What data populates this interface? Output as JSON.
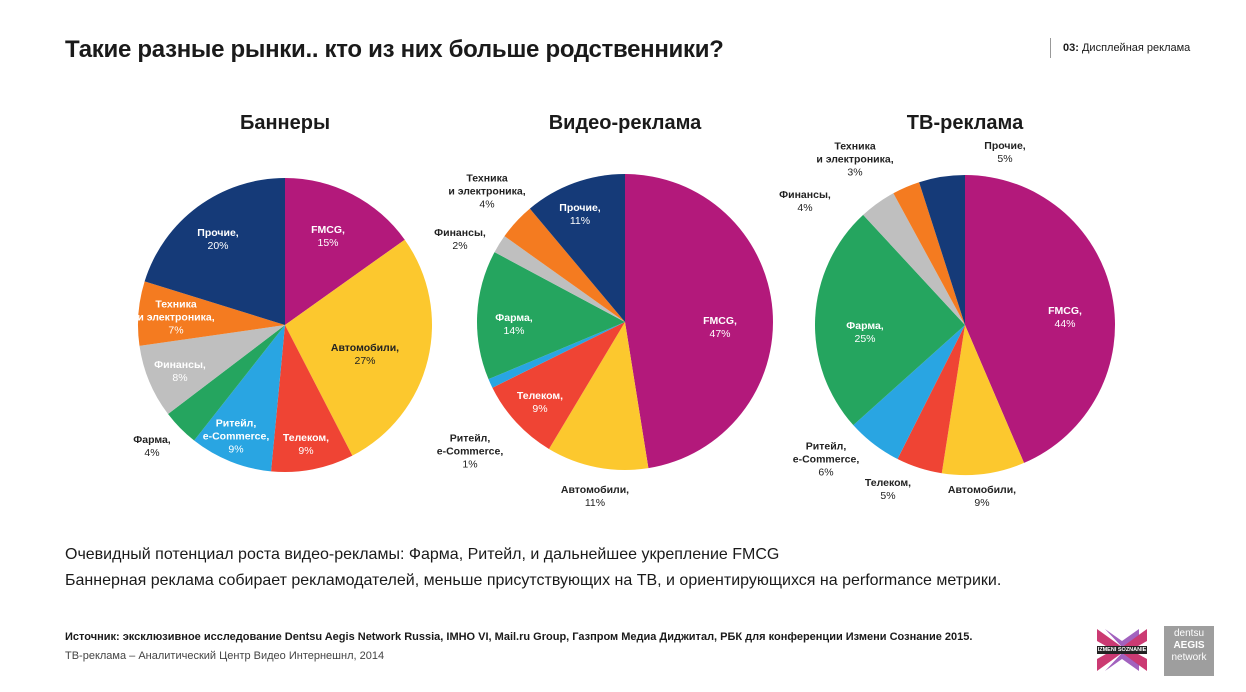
{
  "header": {
    "title": "Такие разные рынки.. кто из них больше родственники?",
    "section_number": "03:",
    "section_name": "Дисплейная реклама"
  },
  "chart_data": [
    {
      "type": "pie",
      "title": "Баннеры",
      "categories": [
        "FMCG,",
        "Автомобили,",
        "Телеком,",
        "Ритейл,\ne-Commerce,",
        "Фарма,",
        "Финансы,",
        "Техника\nи электроника,",
        "Прочие,"
      ],
      "values": [
        15,
        27,
        9,
        9,
        4,
        8,
        7,
        20
      ],
      "value_labels": [
        "15%",
        "27%",
        "9%",
        "9%",
        "4%",
        "8%",
        "7%",
        "20%"
      ],
      "colors": [
        "#b3197b",
        "#fcc82e",
        "#ef4434",
        "#29a5e2",
        "#25a55f",
        "#bfbfbf",
        "#f47b20",
        "#153a78"
      ]
    },
    {
      "type": "pie",
      "title": "Видео-реклама",
      "categories": [
        "FMCG,",
        "Автомобили,",
        "Телеком,",
        "Ритейл,\ne-Commerce,",
        "Фарма,",
        "Финансы,",
        "Техника\nи электроника,",
        "Прочие,"
      ],
      "values": [
        47,
        11,
        9,
        1,
        14,
        2,
        4,
        11
      ],
      "value_labels": [
        "47%",
        "11%",
        "9%",
        "1%",
        "14%",
        "2%",
        "4%",
        "11%"
      ],
      "colors": [
        "#b3197b",
        "#fcc82e",
        "#ef4434",
        "#29a5e2",
        "#25a55f",
        "#bfbfbf",
        "#f47b20",
        "#153a78"
      ]
    },
    {
      "type": "pie",
      "title": "ТВ-реклама",
      "categories": [
        "FMCG,",
        "Автомобили,",
        "Телеком,",
        "Ритейл,\ne-Commerce,",
        "Фарма,",
        "Финансы,",
        "Техника\nи электроника,",
        "Прочие,"
      ],
      "values": [
        44,
        9,
        5,
        6,
        25,
        4,
        3,
        5
      ],
      "value_labels": [
        "44%",
        "9%",
        "5%",
        "6%",
        "25%",
        "4%",
        "3%",
        "5%"
      ],
      "colors": [
        "#b3197b",
        "#fcc82e",
        "#ef4434",
        "#29a5e2",
        "#25a55f",
        "#bfbfbf",
        "#f47b20",
        "#153a78"
      ]
    }
  ],
  "notes": [
    "Очевидный потенциал роста видео-рекламы: Фарма, Ритейл, и дальнейшее укрепление FMCG",
    "Баннерная реклама собирает рекламодателей, меньше присутствующих на ТВ, и ориентирующихся на performance метрики."
  ],
  "source": {
    "text": "Источник: эксклюзивное исследование Dentsu Aegis Network Russia, IMHO VI, Mail.ru Group, Газпром Медиа Диджитал, РБК для конференции Измени Сознание 2015.",
    "note": "ТВ-реклама – Аналитический Центр Видео Интернешнл, 2014"
  },
  "logos": {
    "izmeni": "IZMENI SOZNANIE",
    "dentsu": "dentsu",
    "aegis": "AEGIS",
    "network": "network"
  }
}
